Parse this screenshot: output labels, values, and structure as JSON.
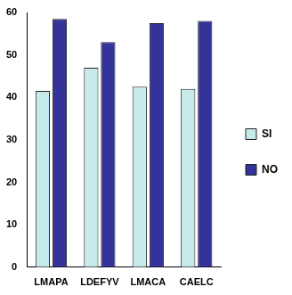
{
  "chart_data": {
    "type": "bar",
    "categories": [
      "LMAPA",
      "LDEFYV",
      "LMACA",
      "CAELC"
    ],
    "series": [
      {
        "name": "SI",
        "color": "#c6e9e9",
        "values": [
          41.5,
          47,
          42.5,
          42
        ]
      },
      {
        "name": "NO",
        "color": "#333399",
        "values": [
          58.5,
          53,
          57.5,
          58
        ]
      }
    ],
    "ylim": [
      0,
      60
    ],
    "yticks": [
      0,
      10,
      20,
      30,
      40,
      50,
      60
    ],
    "grid": false,
    "legend": "right"
  }
}
